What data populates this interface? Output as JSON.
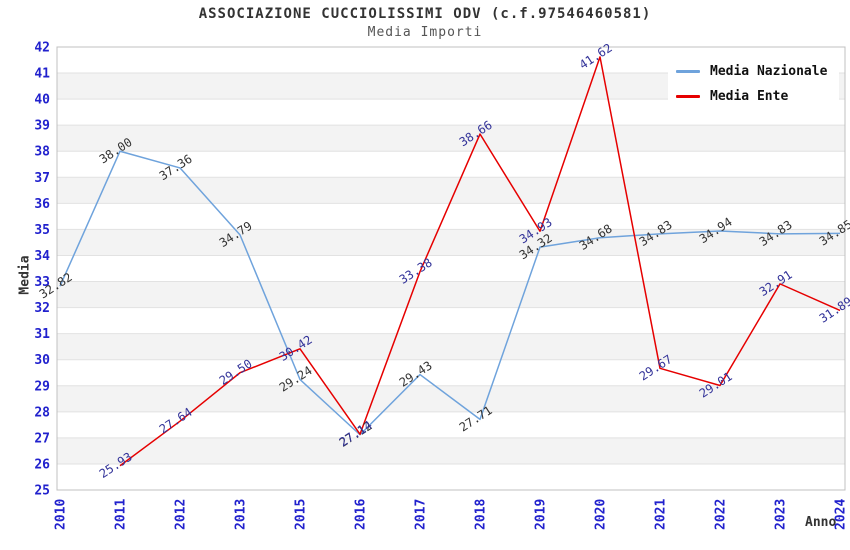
{
  "page": {
    "title": "ASSOCIAZIONE CUCCIOLISSIMI ODV (c.f.97546460581)",
    "subtitle": "Media Importi"
  },
  "chart_data": {
    "type": "line",
    "title": "ASSOCIAZIONE CUCCIOLISSIMI ODV (c.f.97546460581)",
    "subtitle": "Media Importi",
    "xlabel": "Anno",
    "ylabel": "Media",
    "ylim": [
      25,
      42
    ],
    "ytick_step": 1,
    "grid": "horizontal-bands-alternating",
    "legend_position": "top-right",
    "tick_color": "#2121cd",
    "band_color": "#f3f3f3",
    "gridline_color": "#e2e2e2",
    "border_color": "#c0c0c0",
    "categories": [
      "2010",
      "2011",
      "2012",
      "2013",
      "2015",
      "2016",
      "2017",
      "2018",
      "2019",
      "2020",
      "2021",
      "2022",
      "2023",
      "2024"
    ],
    "series": [
      {
        "name": "Media Nazionale",
        "color": "#6fa3dc",
        "label_color": "#333333",
        "values": [
          32.82,
          38.0,
          37.36,
          34.79,
          29.24,
          27.12,
          29.43,
          27.71,
          34.32,
          34.68,
          34.83,
          34.94,
          34.83,
          34.85
        ]
      },
      {
        "name": "Media Ente",
        "color": "#e60000",
        "label_color": "#333399",
        "values": [
          null,
          25.93,
          27.64,
          29.5,
          30.42,
          27.14,
          33.38,
          38.66,
          34.93,
          41.62,
          29.67,
          29.01,
          32.91,
          31.89
        ]
      }
    ]
  }
}
